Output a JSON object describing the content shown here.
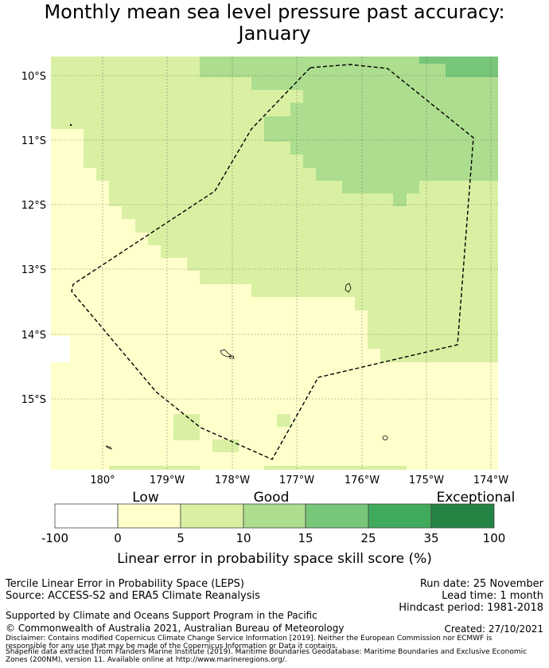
{
  "title_line1": "Monthly mean sea level pressure past accuracy:",
  "title_line2": "January",
  "map": {
    "lat_labels": [
      "10°S",
      "11°S",
      "12°S",
      "13°S",
      "14°S",
      "15°S"
    ],
    "lon_labels": [
      "180°",
      "179°W",
      "178°W",
      "177°W",
      "176°W",
      "175°W",
      "174°W"
    ],
    "eez_boundary": "dashed black line"
  },
  "colorbar": {
    "category_labels": [
      "Low",
      "Good",
      "Exceptional"
    ],
    "ticks": [
      "-100",
      "0",
      "5",
      "10",
      "15",
      "25",
      "35",
      "100"
    ],
    "colors": [
      "#ffffff",
      "#ffffcc",
      "#d9f0a3",
      "#addd8e",
      "#78c679",
      "#41ab5d",
      "#238443"
    ],
    "label": "Linear error in probability space skill score (%)"
  },
  "footer": {
    "left_line1": "Tercile Linear Error in Probability Space (LEPS)",
    "left_line2": "Source: ACCESS-S2 and ERA5 Climate Reanalysis",
    "support": "Supported by Climate and Oceans Support Program in the Pacific",
    "copyright": "© Commonwealth of Australia 2021, Australian Bureau of Meteorology",
    "run_date": "Run date: 25 November",
    "lead_time": "Lead time: 1 month",
    "hindcast": "Hindcast period: 1981-2018",
    "created": "Created: 27/10/2021",
    "disclaimer_1": "Disclaimer: Contains modified Copernicus Climate Change Service Information [2019]. Neither the European Commission nor ECMWF is",
    "disclaimer_2": "responsible for any use that may be made of the Copernicus Information or Data it contains.",
    "disclaimer_3": "Shapefile data extracted from Flanders Marine Institute (2019). Maritime Boundaries Geodatabase: Maritime Boundaries and Exclusive Economic",
    "disclaimer_4": "Zones (200NM), version 11. Available online at http://www.marineregions.org/."
  }
}
